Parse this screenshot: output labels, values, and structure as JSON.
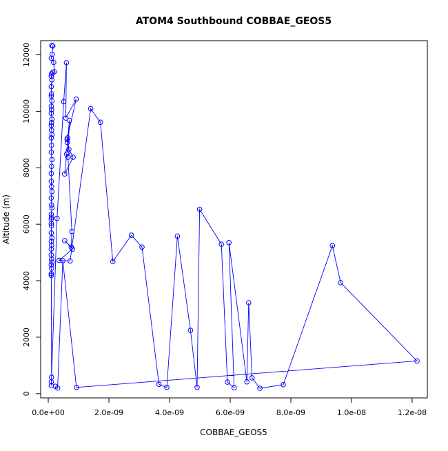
{
  "chart_data": {
    "type": "line",
    "title": "ATOM4 Southbound COBBAE_GEOS5",
    "xlabel": "COBBAE_GEOS5",
    "ylabel": "Altitude (m)",
    "xlim": [
      -2.5e-10,
      1.25e-08
    ],
    "ylim": [
      -150,
      12500
    ],
    "x_ticks": [
      0,
      2e-09,
      4e-09,
      6e-09,
      8e-09,
      1e-08,
      1.2e-08
    ],
    "x_tick_labels": [
      "0.0e+00",
      "2.0e-09",
      "4.0e-09",
      "6.0e-09",
      "8.0e-09",
      "1.0e-08",
      "1.2e-08"
    ],
    "y_ticks": [
      0,
      2000,
      4000,
      6000,
      8000,
      10000,
      12000
    ],
    "y_tick_labels": [
      "0",
      "2000",
      "4000",
      "6000",
      "8000",
      "10000",
      "12000"
    ],
    "grid": false,
    "marker": "open-circle",
    "color": "#0000ff",
    "series": [
      {
        "x": [
          1.2e-10,
          1.5e-10,
          1.3e-10,
          1e-10,
          1.8e-10,
          2e-10,
          1.5e-10,
          1.1e-10,
          1e-10,
          1.2e-10,
          1e-10,
          1.1e-10,
          1e-10,
          1.2e-10,
          1e-10,
          1.1e-10,
          1e-10,
          1.2e-10,
          1.1e-10,
          1e-10,
          1.1e-10,
          1.2e-10,
          1e-10,
          1.1e-10,
          1e-10,
          1.2e-10,
          1.1e-10,
          1e-10,
          1e-10,
          1.1e-10,
          1.2e-10,
          1e-10,
          1.1e-10,
          1.2e-10,
          1e-10,
          1.1e-10,
          1e-10,
          1e-10,
          1.1e-10,
          1e-10,
          1.2e-10,
          1e-10,
          1.1e-10,
          1e-10,
          1e-10,
          1.1e-10,
          1.2e-10,
          1e-10,
          1.1e-10,
          1e-10,
          1e-10,
          1.1e-10,
          1e-10,
          1e-10,
          2.9e-10,
          5.1e-10,
          6e-10,
          5.8e-10,
          9.2e-10,
          6.2e-10,
          6.3e-10,
          6.5e-10,
          7e-10,
          6.4e-10,
          6.8e-10,
          8.2e-10,
          5.4e-10,
          6.1e-10,
          6.5e-10,
          7.8e-10,
          7.6e-10,
          5.4e-10,
          8e-10,
          3.6e-10,
          7.2e-10,
          1.4e-09,
          1.72e-09,
          2.13e-09,
          2.74e-09,
          3.09e-09,
          3.65e-09,
          3.91e-09,
          4.26e-09,
          4.69e-09,
          4.91e-09,
          4.99e-09,
          5.71e-09,
          5.91e-09,
          6.13e-09,
          5.96e-09,
          6.55e-09,
          6.61e-09,
          6.72e-09,
          6.98e-09,
          7.75e-09,
          9.37e-09,
          9.64e-09,
          1.216e-08,
          9.3e-10,
          4.8e-10,
          3.1e-10,
          2.4e-10
        ],
        "y": [
          12330,
          12310,
          12020,
          11880,
          11730,
          11400,
          11380,
          11330,
          11240,
          11110,
          10870,
          10620,
          10540,
          10370,
          10180,
          10050,
          9930,
          9720,
          9600,
          9500,
          9330,
          9170,
          9060,
          8800,
          8550,
          8290,
          8050,
          7800,
          7520,
          7330,
          7160,
          6930,
          6680,
          6580,
          6350,
          6250,
          6180,
          6020,
          5940,
          5690,
          5520,
          5390,
          5260,
          5120,
          4910,
          4760,
          4660,
          4560,
          4440,
          4250,
          4190,
          580,
          420,
          290,
          6210,
          10340,
          11720,
          9760,
          10430,
          9000,
          8900,
          8550,
          9680,
          9060,
          8650,
          8370,
          7780,
          8480,
          8370,
          5740,
          5190,
          5420,
          5120,
          4720,
          4700,
          10090,
          9610,
          4680,
          5610,
          5190,
          330,
          220,
          5580,
          2240,
          220,
          6530,
          5290,
          410,
          210,
          5350,
          420,
          3220,
          560,
          190,
          320,
          5240,
          3930,
          1160,
          220,
          4710,
          200,
          260
        ]
      }
    ]
  }
}
